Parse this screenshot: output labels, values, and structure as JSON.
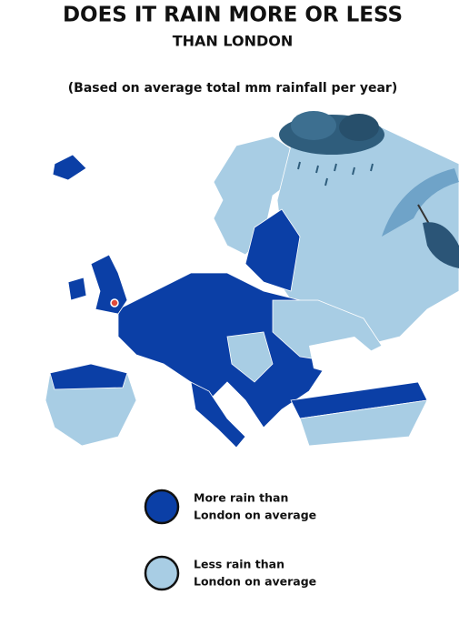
{
  "header": {
    "title": "DOES IT RAIN MORE OR LESS",
    "title_line2": "THAN LONDON",
    "subtitle": "(Based on average total mm rainfall per year)"
  },
  "legend": {
    "items": [
      {
        "label_line1": "More rain than",
        "label_line2": "London on average",
        "color": "#0b3fa6"
      },
      {
        "label_line1": "Less rain than",
        "label_line2": "London on average",
        "color": "#a8cde4"
      }
    ]
  }
}
